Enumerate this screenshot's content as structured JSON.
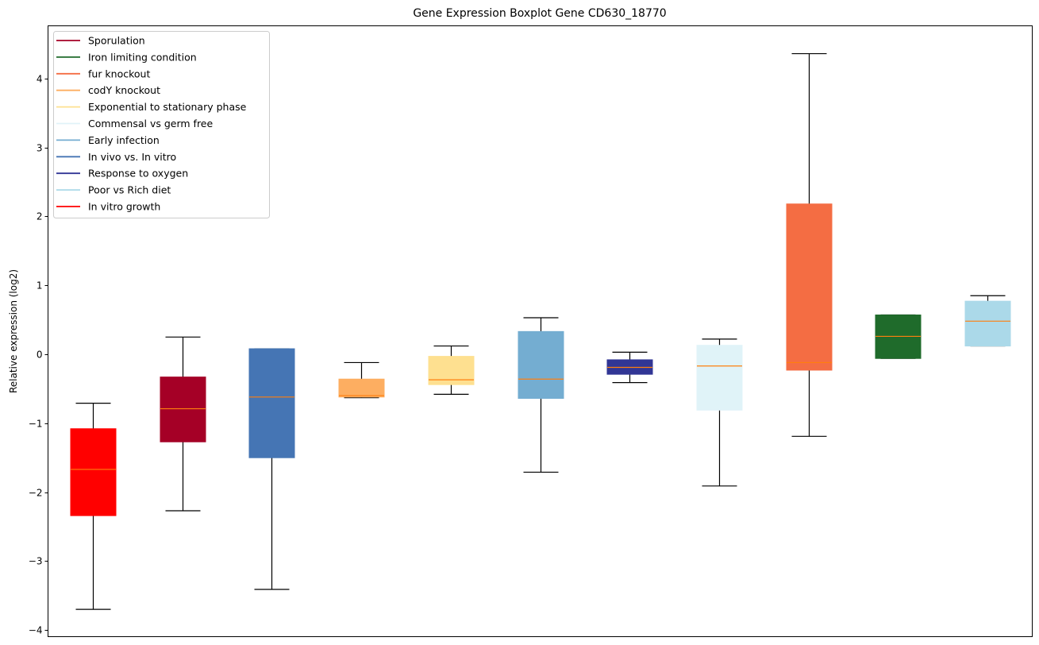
{
  "chart_data": {
    "type": "boxplot",
    "title": "Gene Expression Boxplot Gene CD630_18770",
    "xlabel": "",
    "ylabel": "Relative expression (log2)",
    "ylim": [
      -4.1,
      4.75
    ],
    "yticks": [
      -4,
      -3,
      -2,
      -1,
      0,
      1,
      2,
      3,
      4
    ],
    "ytick_labels": [
      "−4",
      "−3",
      "−2",
      "−1",
      "0",
      "1",
      "2",
      "3",
      "4"
    ],
    "grid": false,
    "legend_position": "top-left",
    "median_color": "#ff7f0e",
    "boxes": [
      {
        "name": "In vitro growth",
        "color": "#ff0000",
        "whislo": -3.7,
        "q1": -2.34,
        "med": -1.67,
        "q3": -1.08,
        "whishi": -0.71
      },
      {
        "name": "Sporulation",
        "color": "#a50026",
        "whislo": -2.27,
        "q1": -1.27,
        "med": -0.79,
        "q3": -0.33,
        "whishi": 0.25
      },
      {
        "name": "In vivo vs. In vitro",
        "color": "#4575b4",
        "whislo": -3.41,
        "q1": -1.5,
        "med": -0.62,
        "q3": 0.08,
        "whishi": 0.08
      },
      {
        "name": "codY knockout",
        "color": "#fdae61",
        "whislo": -0.63,
        "q1": -0.62,
        "med": -0.6,
        "q3": -0.36,
        "whishi": -0.12
      },
      {
        "name": "Exponential to stationary phase",
        "color": "#fee090",
        "whislo": -0.58,
        "q1": -0.44,
        "med": -0.37,
        "q3": -0.03,
        "whishi": 0.12
      },
      {
        "name": "Early infection",
        "color": "#74add1",
        "whislo": -1.71,
        "q1": -0.64,
        "med": -0.36,
        "q3": 0.33,
        "whishi": 0.53
      },
      {
        "name": "Response to oxygen",
        "color": "#313695",
        "whislo": -0.41,
        "q1": -0.29,
        "med": -0.19,
        "q3": -0.08,
        "whishi": 0.03
      },
      {
        "name": "Commensal vs germ free",
        "color": "#e0f3f8",
        "whislo": -1.91,
        "q1": -0.81,
        "med": -0.17,
        "q3": 0.13,
        "whishi": 0.22
      },
      {
        "name": "fur knockout",
        "color": "#f46d43",
        "whislo": -1.19,
        "q1": -0.23,
        "med": -0.12,
        "q3": 2.18,
        "whishi": 4.36
      },
      {
        "name": "Iron limiting condition",
        "color": "#1f6b2b",
        "whislo": -0.06,
        "q1": -0.06,
        "med": 0.26,
        "q3": 0.57,
        "whishi": 0.57
      },
      {
        "name": "Poor vs Rich diet",
        "color": "#abd9e9",
        "whislo": 0.12,
        "q1": 0.12,
        "med": 0.48,
        "q3": 0.77,
        "whishi": 0.85
      }
    ],
    "legend": [
      {
        "label": "Sporulation",
        "color": "#a50026"
      },
      {
        "label": "Iron limiting condition",
        "color": "#1f6b2b"
      },
      {
        "label": "fur knockout",
        "color": "#f46d43"
      },
      {
        "label": "codY knockout",
        "color": "#fdae61"
      },
      {
        "label": "Exponential to stationary phase",
        "color": "#fee090"
      },
      {
        "label": "Commensal vs germ free",
        "color": "#e0f3f8"
      },
      {
        "label": "Early infection",
        "color": "#74add1"
      },
      {
        "label": "In vivo vs. In vitro",
        "color": "#4575b4"
      },
      {
        "label": "Response to oxygen",
        "color": "#313695"
      },
      {
        "label": "Poor vs Rich diet",
        "color": "#abd9e9"
      },
      {
        "label": "In vitro growth",
        "color": "#ff0000"
      }
    ]
  }
}
